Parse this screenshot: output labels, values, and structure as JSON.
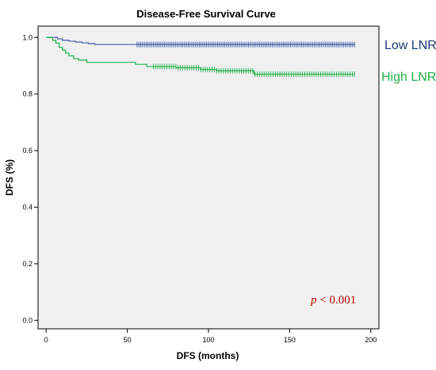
{
  "chart_data": {
    "type": "line",
    "title": "Disease-Free Survival Curve",
    "xlabel": "DFS (months)",
    "ylabel": "DFS (%)",
    "xlim": [
      -5,
      205
    ],
    "ylim": [
      -0.03,
      1.04
    ],
    "xticks": [
      0,
      50,
      100,
      150,
      200
    ],
    "yticks": [
      0.0,
      0.2,
      0.4,
      0.6,
      0.8,
      1.0
    ],
    "xtick_labels": [
      "0",
      "50",
      "100",
      "150",
      "200"
    ],
    "ytick_labels": [
      "0.0",
      "0.2",
      "0.4",
      "0.6",
      "0.8",
      "1.0"
    ],
    "grid": false,
    "background": "#f0f0f0",
    "annotation": {
      "italic": "p",
      "rest": " < 0.001",
      "color": "#c00000"
    },
    "series": [
      {
        "name": "Low LNR",
        "color": "#3b5aa8",
        "steps": [
          [
            0,
            1.0
          ],
          [
            7,
            0.995
          ],
          [
            10,
            0.99
          ],
          [
            14,
            0.987
          ],
          [
            18,
            0.984
          ],
          [
            22,
            0.981
          ],
          [
            26,
            0.978
          ],
          [
            30,
            0.975
          ],
          [
            190,
            0.975
          ]
        ],
        "censor_start": 56,
        "censor_end": 190,
        "censor_count": 120
      },
      {
        "name": "High LNR",
        "color": "#22b14c",
        "steps": [
          [
            0,
            1.0
          ],
          [
            4,
            0.99
          ],
          [
            6,
            0.98
          ],
          [
            8,
            0.965
          ],
          [
            10,
            0.955
          ],
          [
            12,
            0.945
          ],
          [
            14,
            0.935
          ],
          [
            17,
            0.925
          ],
          [
            20,
            0.92
          ],
          [
            25,
            0.912
          ],
          [
            55,
            0.905
          ],
          [
            62,
            0.897
          ],
          [
            80,
            0.893
          ],
          [
            95,
            0.887
          ],
          [
            105,
            0.882
          ],
          [
            128,
            0.87
          ],
          [
            190,
            0.87
          ]
        ],
        "censor_start": 66,
        "censor_end": 190,
        "censor_count": 90
      }
    ]
  }
}
